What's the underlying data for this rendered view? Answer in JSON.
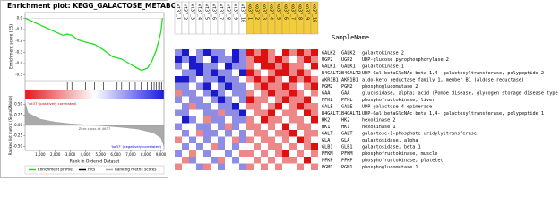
{
  "chart_data": [
    {
      "type": "line",
      "title": "Enrichment plot: KEGG_GALACTOSE_METABOLISM",
      "ylabel": "Enrichment score (ES)",
      "ylim": [
        -0.55,
        0.05
      ],
      "yticks": [
        {
          "value": 0,
          "label": "0.0"
        },
        -0.1,
        -0.2,
        -0.3,
        -0.4,
        -0.5
      ],
      "x": [
        0,
        500,
        1000,
        1500,
        2000,
        2500,
        2800,
        3100,
        3500,
        4000,
        4300,
        4600,
        5200,
        5800,
        6100,
        6400,
        6900,
        7300,
        7700,
        8100,
        8400,
        8700,
        9000,
        9100
      ],
      "values": [
        0,
        -0.03,
        -0.06,
        -0.09,
        -0.12,
        -0.15,
        -0.14,
        -0.15,
        -0.19,
        -0.21,
        -0.22,
        -0.23,
        -0.28,
        -0.34,
        -0.35,
        -0.36,
        -0.4,
        -0.43,
        -0.46,
        -0.44,
        -0.38,
        -0.28,
        -0.12,
        0
      ],
      "color": "#22dd22",
      "hits": [
        2800,
        3100,
        4000,
        4300,
        4600,
        5200,
        6100,
        6400,
        6900,
        7300,
        7700,
        8100,
        8400,
        8550,
        8700,
        8850,
        8950,
        9050
      ],
      "hits_color": "#000000",
      "metric": {
        "ylabel": "Ranked list metric (Signal2Noise)",
        "ylim": [
          -0.6,
          0.6
        ],
        "yticks": [
          {
            "value": 0.5,
            "label": "0.50"
          },
          {
            "value": 0.25,
            "label": "0.25"
          },
          {
            "value": 0,
            "label": "0.00"
          },
          {
            "value": -0.25,
            "label": "-0.25"
          },
          {
            "value": -0.5,
            "label": "-0.50"
          }
        ],
        "x": [
          0,
          200,
          1000,
          2000,
          3000,
          4000,
          4637,
          5500,
          6500,
          7500,
          8500,
          9000,
          9200
        ],
        "values": [
          0.55,
          0.3,
          0.15,
          0.08,
          0.04,
          0.015,
          0,
          -0.02,
          -0.05,
          -0.09,
          -0.18,
          -0.3,
          -0.5
        ],
        "color": "#aaaaaa"
      },
      "annotations": [
        "'wt37' (positively correlated)",
        "Zero cross at 4637",
        "'ko37' (negatively correlated)"
      ],
      "xlabel": "Rank in Ordered Dataset",
      "xlim": [
        0,
        9200
      ],
      "xticks": [
        {
          "value": 1000,
          "label": "1,000"
        },
        {
          "value": 2000,
          "label": "2,000"
        },
        {
          "value": 3000,
          "label": "3,000"
        },
        {
          "value": 4000,
          "label": "4,000"
        },
        {
          "value": 5000,
          "label": "5,000"
        },
        {
          "value": 6000,
          "label": "6,000"
        },
        {
          "value": 7000,
          "label": "7,000"
        },
        {
          "value": 8000,
          "label": "8,000"
        },
        {
          "value": 9000,
          "label": "9,000"
        }
      ],
      "legend": [
        "Enrichment profile",
        "Hits",
        "Ranking metric scores"
      ]
    },
    {
      "type": "heatmap",
      "column_title": "SampleName",
      "columns": [
        "wt37_1",
        "wt37_2",
        "wt37_3",
        "wt37_4",
        "wt37_5",
        "wt37_6",
        "wt37_7",
        "wt37_8",
        "wt37_9",
        "wt37_10",
        "ko37_1",
        "ko37_2",
        "ko37_3",
        "ko37_4",
        "ko37_5",
        "ko37_6",
        "ko37_7",
        "ko37_8",
        "ko37_9",
        "ko37_10"
      ],
      "header_colors": [
        "#ffffff",
        "#f2cc3a"
      ],
      "vlim": [
        -2,
        2
      ],
      "rows": [
        [
          "GALK2",
          "GALK2",
          "galactokinase 2"
        ],
        [
          "UGP2",
          "UGP2",
          "UDP-glucose pyrophosphorylase 2"
        ],
        [
          "GALK1",
          "GALK1",
          "galactokinase 1"
        ],
        [
          "B4GALT2",
          "B4GALT2",
          "UDP-Gal:betaGlcNAc beta 1,4- galactosyltransferase, polypeptide 2"
        ],
        [
          "AKR1B1",
          "AKR1B1",
          "aldo-keto reductase family 1, member B1 (aldose reductase)"
        ],
        [
          "PGM2",
          "PGM2",
          "phosphoglucomutase 2"
        ],
        [
          "GAA",
          "GAA",
          "glucosidase, alpha; acid (Pompe disease, glycogen storage disease type II)"
        ],
        [
          "PFKL",
          "PFKL",
          "phosphofructokinase, liver"
        ],
        [
          "GALE",
          "GALE",
          "UDP-galactose-4-epimerase"
        ],
        [
          "B4GALT1",
          "B4GALT1",
          "UDP-Gal:betaGlcNAc beta 1,4- galactosyltransferase, polypeptide 1"
        ],
        [
          "HK2",
          "HK2",
          "hexokinase 2"
        ],
        [
          "HK1",
          "HK1",
          "hexokinase 1"
        ],
        [
          "GALT",
          "GALT",
          "galactose-1-phosphate uridylyltransferase"
        ],
        [
          "GLA",
          "GLA",
          "galactosidase, alpha"
        ],
        [
          "GLB1",
          "GLB1",
          "galactosidase, beta 1"
        ],
        [
          "PFKM",
          "PFKM",
          "phosphofructokinase, muscle"
        ],
        [
          "PFKP",
          "PFKP",
          "phosphofructokinase, platelet"
        ],
        [
          "PGM1",
          "PGM1",
          "phosphoglucomutase 1"
        ]
      ],
      "values": [
        [
          -1,
          -2,
          0,
          -1,
          -2,
          -1,
          -1,
          0,
          -2,
          -1,
          2,
          1,
          2,
          1,
          0,
          2,
          1,
          2,
          1,
          2
        ],
        [
          -2,
          -1,
          -2,
          -1,
          0,
          -2,
          -1,
          -1,
          -2,
          -1,
          1,
          2,
          2,
          1,
          2,
          1,
          0,
          1,
          2,
          1
        ],
        [
          -1,
          0,
          -2,
          -2,
          -1,
          -1,
          0,
          -2,
          -1,
          -1,
          1,
          0,
          2,
          2,
          1,
          2,
          1,
          1,
          0,
          2
        ],
        [
          0,
          -1,
          -1,
          -2,
          -1,
          -2,
          -1,
          -1,
          0,
          -2,
          2,
          1,
          0,
          1,
          2,
          2,
          1,
          2,
          1,
          0
        ],
        [
          -2,
          -2,
          -1,
          0,
          -1,
          -1,
          -2,
          -1,
          -1,
          0,
          1,
          2,
          1,
          2,
          1,
          0,
          2,
          1,
          2,
          1
        ],
        [
          -1,
          -1,
          0,
          -1,
          -2,
          0,
          -1,
          -2,
          -1,
          -1,
          0,
          1,
          2,
          1,
          1,
          2,
          1,
          0,
          1,
          2
        ],
        [
          1,
          -1,
          -1,
          0,
          -1,
          -2,
          -1,
          0,
          -1,
          -1,
          1,
          0,
          1,
          2,
          1,
          1,
          2,
          1,
          0,
          1
        ],
        [
          -1,
          0,
          -1,
          -1,
          0,
          -1,
          -2,
          -1,
          0,
          -1,
          2,
          1,
          1,
          0,
          1,
          2,
          1,
          1,
          2,
          0
        ],
        [
          0,
          -1,
          1,
          -1,
          -1,
          0,
          -1,
          -1,
          -2,
          0,
          1,
          1,
          0,
          1,
          2,
          0,
          1,
          2,
          1,
          1
        ],
        [
          -1,
          -1,
          0,
          0,
          -1,
          -1,
          1,
          -1,
          -1,
          -2,
          0,
          1,
          1,
          2,
          0,
          1,
          1,
          0,
          2,
          1
        ],
        [
          0,
          -2,
          -1,
          0,
          1,
          -1,
          -1,
          0,
          -1,
          -1,
          1,
          0,
          2,
          1,
          1,
          0,
          1,
          1,
          0,
          2
        ],
        [
          -1,
          0,
          0,
          -1,
          -1,
          0,
          -1,
          1,
          -1,
          0,
          1,
          1,
          0,
          1,
          0,
          2,
          0,
          1,
          1,
          0
        ],
        [
          0,
          -1,
          0,
          1,
          -1,
          -1,
          0,
          -1,
          0,
          -1,
          0,
          1,
          1,
          0,
          1,
          1,
          2,
          0,
          1,
          1
        ],
        [
          1,
          0,
          -1,
          0,
          -1,
          0,
          -1,
          0,
          1,
          -1,
          1,
          0,
          1,
          1,
          0,
          1,
          0,
          2,
          1,
          0
        ],
        [
          0,
          -1,
          0,
          -1,
          0,
          1,
          -1,
          0,
          -1,
          0,
          0,
          1,
          0,
          1,
          1,
          0,
          1,
          0,
          1,
          2
        ],
        [
          -1,
          0,
          1,
          0,
          -1,
          0,
          0,
          -1,
          0,
          1,
          1,
          0,
          1,
          0,
          1,
          2,
          0,
          1,
          0,
          1
        ],
        [
          0,
          1,
          -1,
          0,
          0,
          -1,
          1,
          0,
          -1,
          0,
          0,
          1,
          0,
          1,
          0,
          1,
          1,
          0,
          2,
          0
        ],
        [
          1,
          0,
          0,
          -1,
          1,
          0,
          -1,
          0,
          0,
          -1,
          1,
          0,
          1,
          0,
          1,
          0,
          0,
          1,
          0,
          1
        ]
      ],
      "neg_color": "#1a1acc",
      "pos_color": "#dd1111"
    }
  ]
}
